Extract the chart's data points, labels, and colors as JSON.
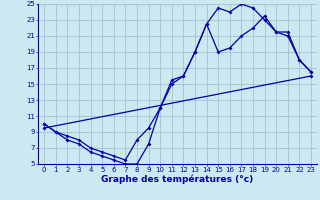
{
  "xlabel": "Graphe des températures (°c)",
  "background_color": "#cce8f0",
  "grid_color": "#99bbcc",
  "line_color": "#0000aa",
  "xlim": [
    -0.5,
    23.5
  ],
  "ylim": [
    5,
    25
  ],
  "xticks": [
    0,
    1,
    2,
    3,
    4,
    5,
    6,
    7,
    8,
    9,
    10,
    11,
    12,
    13,
    14,
    15,
    16,
    17,
    18,
    19,
    20,
    21,
    22,
    23
  ],
  "yticks": [
    5,
    7,
    9,
    11,
    13,
    15,
    17,
    19,
    21,
    23,
    25
  ],
  "line1_x": [
    0,
    1,
    2,
    3,
    4,
    5,
    6,
    7,
    8,
    9,
    10,
    11,
    12,
    13,
    14,
    15,
    16,
    17,
    18,
    19,
    20,
    21,
    22,
    23
  ],
  "line1_y": [
    10,
    9,
    8.5,
    8,
    7,
    6.5,
    6,
    5.5,
    8,
    9.5,
    12,
    15.5,
    16,
    19,
    22.5,
    24.5,
    24,
    25,
    24.5,
    23,
    21.5,
    21,
    18,
    16.5
  ],
  "line2_x": [
    0,
    1,
    2,
    3,
    4,
    5,
    6,
    7,
    8,
    9,
    10,
    11,
    12,
    13,
    14,
    15,
    16,
    17,
    18,
    19,
    20,
    21,
    22,
    23
  ],
  "line2_y": [
    10,
    9,
    8,
    7.5,
    6.5,
    6,
    5.5,
    5,
    5,
    7.5,
    12,
    15,
    16,
    19,
    22.5,
    19,
    19.5,
    21,
    22,
    23.5,
    21.5,
    21.5,
    18,
    16.5
  ],
  "line3_x": [
    0,
    23
  ],
  "line3_y": [
    9.5,
    16
  ],
  "xlabel_fontsize": 6.5,
  "tick_fontsize": 5
}
